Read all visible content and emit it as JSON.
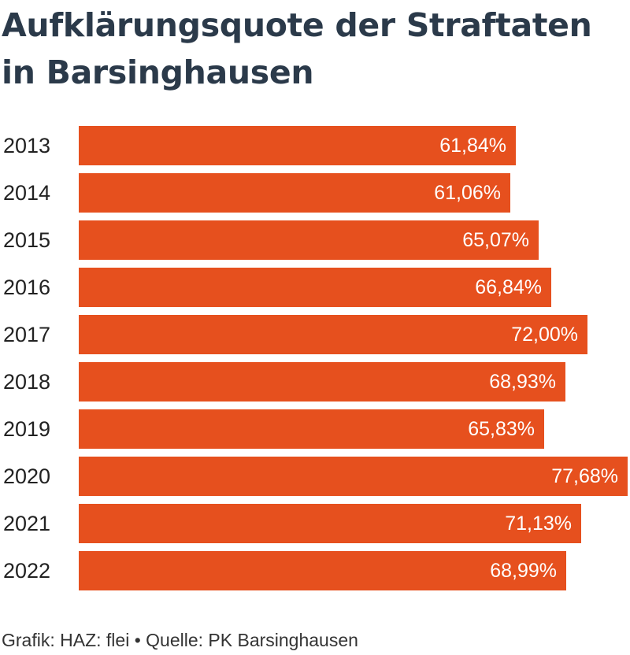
{
  "title": "Aufklärungsquote der Straftaten in Barsinghausen",
  "footer": "Grafik: HAZ: flei • Quelle: PK Barsinghausen",
  "colors": {
    "bar": "#e6501e",
    "title": "#2b3a4a",
    "value_label": "#ffffff"
  },
  "chart_data": {
    "type": "bar",
    "orientation": "horizontal",
    "categories": [
      "2013",
      "2014",
      "2015",
      "2016",
      "2017",
      "2018",
      "2019",
      "2020",
      "2021",
      "2022"
    ],
    "values": [
      61.84,
      61.06,
      65.07,
      66.84,
      72.0,
      68.93,
      65.83,
      77.68,
      71.13,
      68.99
    ],
    "value_labels": [
      "61,84%",
      "61,06%",
      "65,07%",
      "66,84%",
      "72,00%",
      "68,93%",
      "65,83%",
      "77,68%",
      "71,13%",
      "68,99%"
    ],
    "unit": "%",
    "xlim": [
      0,
      77.68
    ],
    "grid": false,
    "legend": "none"
  }
}
